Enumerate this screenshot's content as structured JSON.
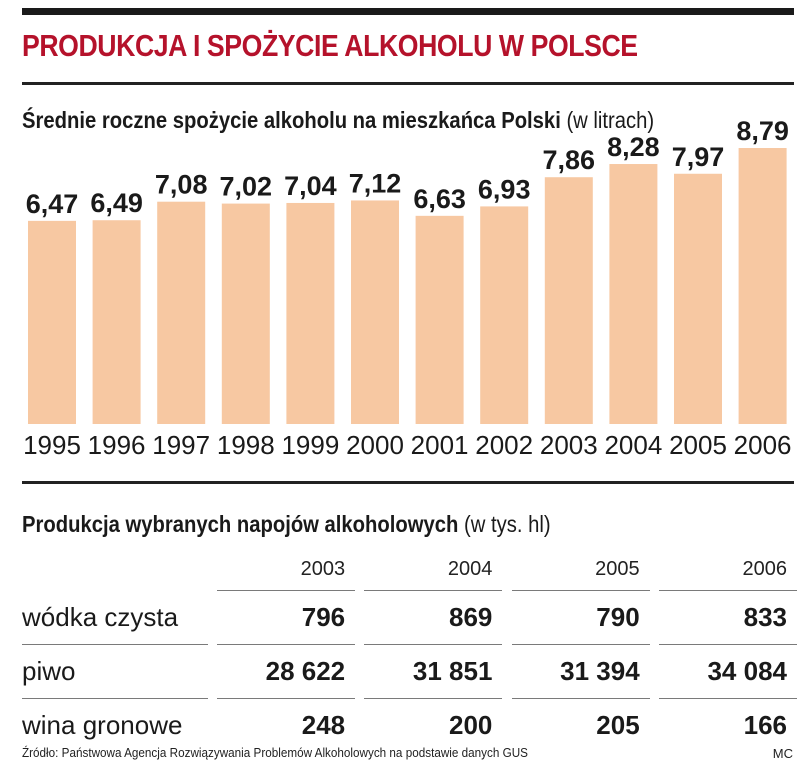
{
  "title": "PRODUKCJA I SPOŻYCIE ALKOHOLU W POLSCE",
  "chart_section": {
    "heading": "Średnie roczne spożycie alkoholu na mieszkańca Polski",
    "unit": "(w litrach)"
  },
  "chart_data": {
    "type": "bar",
    "title": "Średnie roczne spożycie alkoholu na mieszkańca Polski (w litrach)",
    "categories": [
      "1995",
      "1996",
      "1997",
      "1998",
      "1999",
      "2000",
      "2001",
      "2002",
      "2003",
      "2004",
      "2005",
      "2006"
    ],
    "values": [
      6.47,
      6.49,
      7.08,
      7.02,
      7.04,
      7.12,
      6.63,
      6.93,
      7.86,
      8.28,
      7.97,
      8.79
    ],
    "value_labels": [
      "6,47",
      "6,49",
      "7,08",
      "7,02",
      "7,04",
      "7,12",
      "6,63",
      "6,93",
      "7,86",
      "8,28",
      "7,97",
      "8,79"
    ],
    "bar_color": "#f7c8a2",
    "ylim": [
      0,
      9.3
    ]
  },
  "table_section": {
    "heading": "Produkcja wybranych napojów alkoholowych",
    "unit": "(w tys. hl)",
    "columns": [
      "2003",
      "2004",
      "2005",
      "2006"
    ],
    "rows": [
      {
        "label": "wódka czysta",
        "values": [
          "796",
          "869",
          "790",
          "833"
        ]
      },
      {
        "label": "piwo",
        "values": [
          "28 622",
          "31 851",
          "31 394",
          "34 084"
        ]
      },
      {
        "label": "wina gronowe",
        "values": [
          "248",
          "200",
          "205",
          "166"
        ]
      }
    ]
  },
  "footer": {
    "source": "Źródło: Państwowa Agencja Rozwiązywania Problemów Alkoholowych na podstawie danych GUS",
    "credit": "MC"
  },
  "colors": {
    "title": "#b5122b",
    "bar": "#f7c8a2"
  }
}
